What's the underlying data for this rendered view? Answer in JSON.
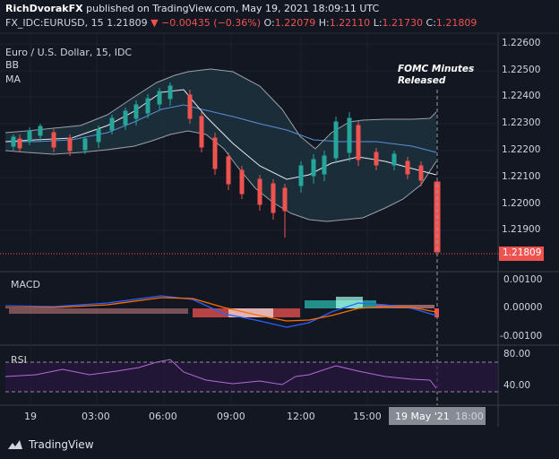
{
  "header": {
    "author": "RichDvorakFX",
    "published": "published on TradingView.com, May 19, 2021 18:09:11 UTC",
    "symbol": "FX_IDC:EURUSD, 15",
    "price": "1.21809",
    "change": "−0.00435 (−0.36%)",
    "open_label": "O:",
    "open": "1.22079",
    "high_label": "H:",
    "high": "1.22110",
    "low_label": "L:",
    "low": "1.21730",
    "close_label": "C:",
    "close": "1.21809"
  },
  "legend": {
    "title": "Euro / U.S. Dollar, 15, IDC",
    "bb": "BB",
    "ma": "MA"
  },
  "annotation": {
    "line1": "FOMC Minutes",
    "line2": "Released"
  },
  "price_axis": [
    "1.22600",
    "1.22500",
    "1.22400",
    "1.22300",
    "1.22200",
    "1.22100",
    "1.22000",
    "1.21900"
  ],
  "last_price_label": "1.21809",
  "macd": {
    "label": "MACD",
    "ticks": [
      "0.00100",
      "0.00000",
      "-0.00100"
    ]
  },
  "rsi": {
    "label": "RSI",
    "ticks": [
      "80.00",
      "40.00"
    ]
  },
  "time_axis": [
    "19",
    "03:00",
    "06:00",
    "09:00",
    "12:00",
    "15:00",
    "18:00"
  ],
  "crosshair_time": "19 May '21",
  "brand": "TradingView",
  "colors": {
    "up": "#26a69a",
    "down": "#ef5350",
    "bg": "#131722"
  }
}
